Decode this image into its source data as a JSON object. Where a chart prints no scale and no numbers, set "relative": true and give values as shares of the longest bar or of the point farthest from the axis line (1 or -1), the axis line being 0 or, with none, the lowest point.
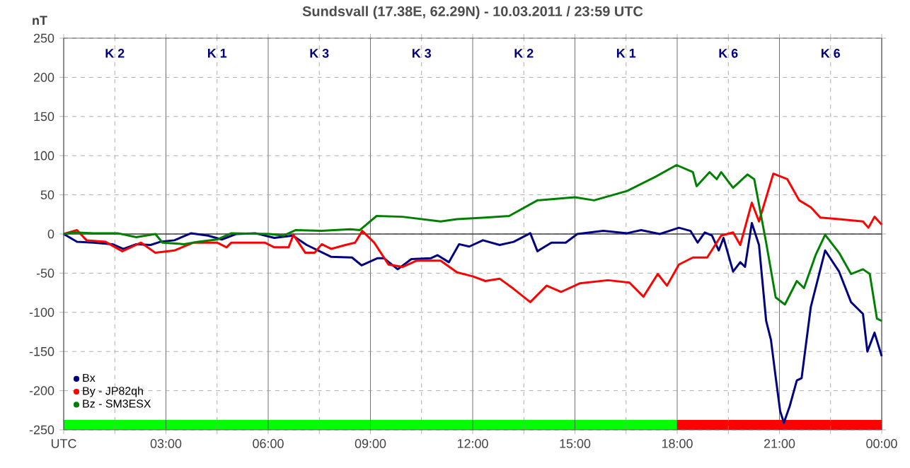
{
  "chart_data": [
    {
      "type": "line",
      "title": "Sundsvall (17.38E, 62.29N) - 10.03.2011 / 23:59 UTC",
      "ylabel": "nT",
      "x": [
        0,
        0.39,
        0.88,
        1.43,
        1.75,
        2.13,
        2.55,
        2.83,
        3.25,
        3.74,
        4.23,
        4.64,
        5.06,
        5.62,
        6.18,
        6.72,
        7.13,
        7.84,
        8.46,
        8.74,
        9.2,
        9.4,
        9.8,
        10.2,
        10.77,
        10.97,
        11.3,
        11.6,
        11.9,
        12.3,
        12.79,
        13.2,
        13.69,
        13.9,
        14.31,
        14.73,
        15.07,
        15.83,
        16.53,
        16.94,
        17.49,
        18.05,
        18.39,
        18.6,
        18.81,
        19.02,
        19.22,
        19.36,
        19.64,
        19.85,
        19.99,
        20.19,
        20.4,
        20.61,
        20.75,
        20.89,
        21.02,
        21.13,
        21.3,
        21.51,
        21.65,
        21.92,
        22.34,
        22.75,
        23.1,
        23.45,
        23.58,
        23.79,
        24
      ],
      "series": [
        {
          "name": "Bx",
          "color": "#000080",
          "values": [
            0,
            -10,
            -11,
            -13,
            -19,
            -13,
            -14,
            -10,
            -8,
            1,
            -2,
            -7,
            0,
            1,
            -5,
            -2,
            -14,
            -29,
            -30,
            -40,
            -31,
            -31,
            -45,
            -32,
            -31,
            -27,
            -36,
            -13,
            -16,
            -8,
            -14,
            -10,
            1,
            -22,
            -11,
            -11,
            0,
            4,
            1,
            5,
            0,
            8,
            4,
            -11,
            2,
            -2,
            -21,
            -5,
            -48,
            -36,
            -42,
            14,
            -14,
            -111,
            -135,
            -183,
            -226,
            -241,
            -220,
            -187,
            -184,
            -93,
            -21,
            -48,
            -87,
            -102,
            -150,
            -126,
            -156
          ]
        },
        {
          "name": "By  -  JP82qh",
          "color": "#ff0000",
          "x": [
            0,
            0.39,
            0.67,
            1.23,
            1.72,
            2.27,
            2.69,
            3.25,
            3.81,
            4.5,
            4.78,
            4.92,
            5.9,
            6.18,
            6.6,
            6.74,
            7.09,
            7.36,
            7.57,
            7.85,
            8.27,
            8.55,
            8.76,
            9.11,
            9.53,
            9.94,
            10.36,
            11.06,
            11.54,
            12,
            12.37,
            12.79,
            13.2,
            13.69,
            14.17,
            14.59,
            15.14,
            15.97,
            16.6,
            17.01,
            17.43,
            17.7,
            18.05,
            18.46,
            18.88,
            19.29,
            19.64,
            19.85,
            20.19,
            20.4,
            20.82,
            21.23,
            21.58,
            21.92,
            22.2,
            22.75,
            23.45,
            23.61,
            23.79,
            24
          ],
          "values": [
            0,
            5,
            -8,
            -10,
            -22,
            -11,
            -24,
            -21,
            -11,
            -11,
            -17,
            -11,
            -11,
            -17,
            -17,
            -1,
            -24,
            -24,
            -13,
            -19,
            -14,
            -11,
            4,
            -11,
            -39,
            -42,
            -34,
            -34,
            -49,
            -54,
            -60,
            -57,
            -70,
            -87,
            -66,
            -74,
            -63,
            -59,
            -62,
            -80,
            -51,
            -66,
            -39,
            -30,
            -30,
            -2,
            2,
            -14,
            40,
            16,
            77,
            70,
            43,
            34,
            21,
            19,
            16,
            8,
            22,
            12
          ]
        },
        {
          "name": "Bz  -  SM3ESX",
          "color": "#008000",
          "x": [
            0,
            0.32,
            0.88,
            1.58,
            2.13,
            2.69,
            2.9,
            3.53,
            3.95,
            4.5,
            4.92,
            6.04,
            6.46,
            6.81,
            7.57,
            8.41,
            8.69,
            9.18,
            9.94,
            11.06,
            11.54,
            12.37,
            13.07,
            13.9,
            15.0,
            15.56,
            16.53,
            17.36,
            17.98,
            18.46,
            18.57,
            18.95,
            19.16,
            19.29,
            19.64,
            20.06,
            20.26,
            20.61,
            20.89,
            21.16,
            21.51,
            21.72,
            22.06,
            22.34,
            22.75,
            23.1,
            23.45,
            23.65,
            23.86,
            24
          ],
          "values": [
            0,
            2,
            1,
            1,
            -4,
            0,
            -11,
            -13,
            -10,
            -7,
            1,
            0,
            -2,
            5,
            4,
            6,
            5,
            23,
            22,
            16,
            19,
            21,
            23,
            43,
            47,
            43,
            55,
            73,
            88,
            79,
            61,
            79,
            70,
            79,
            59,
            76,
            70,
            -11,
            -81,
            -90,
            -60,
            -69,
            -27,
            -1,
            -24,
            -51,
            -45,
            -51,
            -108,
            -111
          ]
        }
      ],
      "xlim": [
        0,
        24
      ],
      "ylim": [
        -250,
        250
      ],
      "xticks": [
        {
          "value": 0,
          "label": "UTC"
        },
        {
          "value": 1.5,
          "label": null
        },
        {
          "value": 3,
          "label": "03:00"
        },
        {
          "value": 4.5,
          "label": null
        },
        {
          "value": 6,
          "label": "06:00"
        },
        {
          "value": 7.5,
          "label": null
        },
        {
          "value": 9,
          "label": "09:00"
        },
        {
          "value": 10.5,
          "label": null
        },
        {
          "value": 12,
          "label": "12:00"
        },
        {
          "value": 13.5,
          "label": null
        },
        {
          "value": 15,
          "label": "15:00"
        },
        {
          "value": 16.5,
          "label": null
        },
        {
          "value": 18,
          "label": "18:00"
        },
        {
          "value": 19.5,
          "label": null
        },
        {
          "value": 21,
          "label": "21:00"
        },
        {
          "value": 22.5,
          "label": null
        },
        {
          "value": 24,
          "label": "00:00"
        }
      ],
      "yticks": [
        -250,
        -200,
        -150,
        -100,
        -50,
        0,
        50,
        100,
        150,
        200,
        250
      ],
      "grid": true,
      "legend": "bottom left",
      "marker": "none",
      "line_style": "solid",
      "ref_lines": [
        {
          "axis": "y",
          "value": 0,
          "color": "#404040"
        }
      ],
      "annotations": [
        "K 2",
        "K 1",
        "K 3",
        "K 3",
        "K 2",
        "K 1",
        "K 6",
        "K 6"
      ]
    },
    {
      "type": "bar",
      "orientation": "horizontal",
      "stacked": true,
      "categories": [
        null
      ],
      "relative": true,
      "series": [
        {
          "color": "#00ff00",
          "values": [
            0.75
          ]
        },
        {
          "color": "#ff0000",
          "values": [
            0.25
          ]
        }
      ]
    }
  ]
}
